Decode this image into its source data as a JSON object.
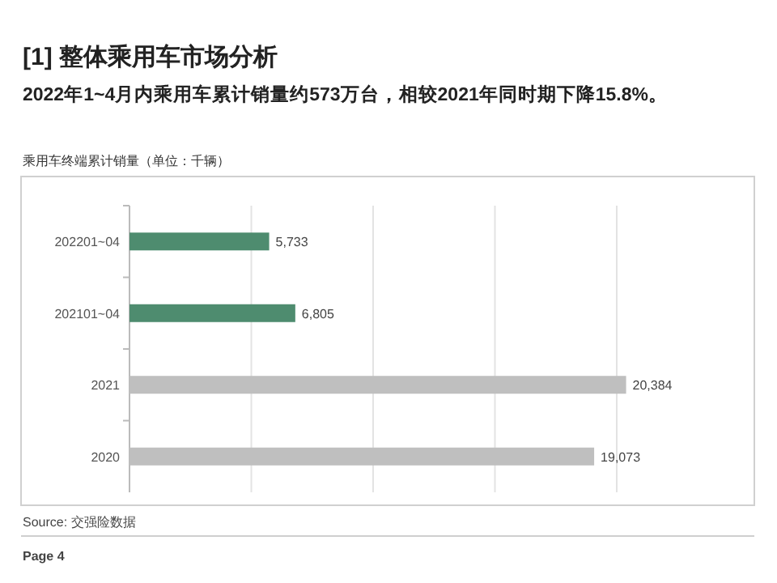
{
  "chart_data": {
    "type": "bar",
    "orientation": "horizontal",
    "title": "[1] 整体乘用车市场分析",
    "subtitle": "2022年1~4月内乘用车累计销量约573万台，相较2021年同时期下降15.8%。",
    "xlabel": "乘用车终端累计销量（单位：千辆）",
    "categories": [
      "202201~04",
      "202101~04",
      "2021",
      "2020"
    ],
    "values": [
      5733,
      6805,
      20384,
      19073
    ],
    "colors": [
      "#4e8c6f",
      "#4e8c6f",
      "#bfbfbf",
      "#bfbfbf"
    ],
    "value_labels": [
      "5,733",
      "6,805",
      "20,384",
      "19,073"
    ],
    "xticks": [
      {
        "value": 0,
        "label": null
      },
      {
        "value": 5000,
        "label": null
      },
      {
        "value": 10000,
        "label": null
      },
      {
        "value": 15000,
        "label": null
      },
      {
        "value": 20000,
        "label": null
      }
    ],
    "grid": "x",
    "annotations": [
      "Source: 交强险数据",
      "Page 4"
    ]
  }
}
